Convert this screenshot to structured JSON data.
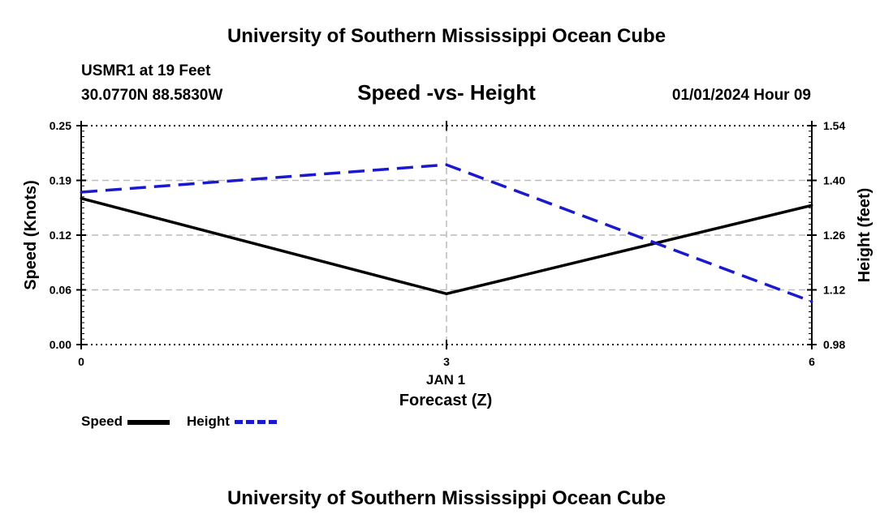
{
  "header": {
    "title": "University of Southern Mississippi Ocean Cube",
    "station": "USMR1 at 19 Feet",
    "location": "30.0770N  88.5830W",
    "datetime": "01/01/2024 Hour 09"
  },
  "footer": {
    "title": "University of Southern Mississippi Ocean Cube"
  },
  "chart_data": {
    "type": "line",
    "title": "Speed -vs- Height",
    "xlabel": "Forecast (Z)",
    "x_sublabel": "JAN 1",
    "ylabel": "Speed (Knots)",
    "y2label": "Height (feet)",
    "x": [
      0,
      3,
      6
    ],
    "x_ticks": [
      "0",
      "3",
      "6"
    ],
    "xlim": [
      0,
      6
    ],
    "ylim": [
      0.0,
      0.25
    ],
    "y2lim": [
      0.98,
      1.54
    ],
    "y_ticks": [
      "0.00",
      "0.06",
      "0.12",
      "0.19",
      "0.25"
    ],
    "y2_ticks": [
      "0.98",
      "1.12",
      "1.26",
      "1.40",
      "1.54"
    ],
    "grid": true,
    "legend_position": "bottom-left",
    "series": [
      {
        "name": "Speed",
        "axis": "left",
        "style": "solid",
        "color": "#000000",
        "values": [
          0.167,
          0.058,
          0.159
        ]
      },
      {
        "name": "Height",
        "axis": "right",
        "style": "dashed",
        "color": "#1a1acc",
        "values": [
          1.37,
          1.44,
          1.09
        ]
      }
    ]
  }
}
